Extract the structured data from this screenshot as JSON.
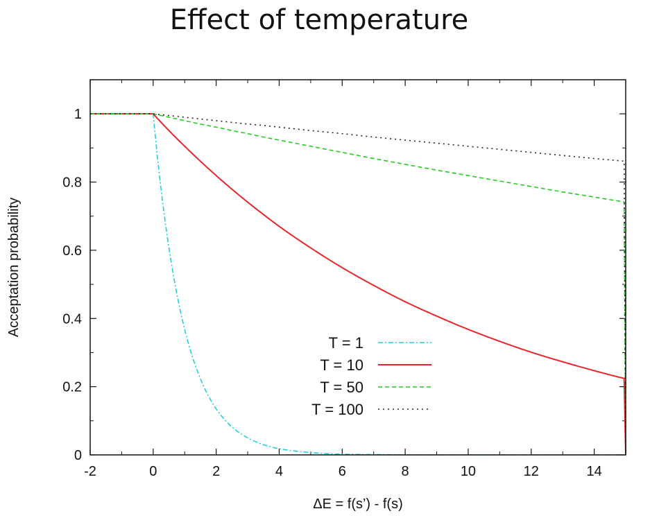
{
  "slide": {
    "title": "Effect of temperature"
  },
  "chart_data": {
    "type": "line",
    "title": "",
    "xlabel": "ΔE = f(s’) - f(s)",
    "ylabel": "Acceptation probability",
    "xlim": [
      -2,
      15
    ],
    "ylim": [
      0,
      1.1
    ],
    "x_ticks": [
      -2,
      0,
      2,
      4,
      6,
      8,
      10,
      12,
      14
    ],
    "y_ticks": [
      0,
      0.2,
      0.4,
      0.6,
      0.8,
      1
    ],
    "y_tick_labels": [
      "0",
      "0.2",
      "0.4",
      "0.6",
      "0.8",
      "1"
    ],
    "grid": false,
    "legend_position": "center",
    "x": [
      -2,
      -1,
      0,
      0.5,
      1,
      1.5,
      2,
      2.5,
      3,
      3.5,
      4,
      5,
      6,
      7,
      8,
      9,
      10,
      11,
      12,
      13,
      14,
      15
    ],
    "series": [
      {
        "name": "T = 1",
        "color": "#1fd0e0",
        "dash": "dashdot",
        "values": [
          1,
          1,
          1,
          0.607,
          0.368,
          0.223,
          0.135,
          0.082,
          0.05,
          0.03,
          0.018,
          0.007,
          0.002,
          0.001,
          0,
          0,
          0,
          0,
          0,
          0,
          0,
          0
        ]
      },
      {
        "name": "T = 10",
        "color": "#e8262a",
        "dash": "solid",
        "values": [
          1,
          1,
          1,
          0.951,
          0.905,
          0.861,
          0.819,
          0.779,
          0.741,
          0.705,
          0.67,
          0.607,
          0.549,
          0.497,
          0.449,
          0.407,
          0.368,
          0.333,
          0.301,
          0.273,
          0.247,
          0.223
        ]
      },
      {
        "name": "T = 50",
        "color": "#22cc22",
        "dash": "dashed",
        "values": [
          1,
          1,
          1,
          0.99,
          0.98,
          0.97,
          0.961,
          0.951,
          0.942,
          0.932,
          0.923,
          0.905,
          0.887,
          0.869,
          0.852,
          0.835,
          0.819,
          0.803,
          0.787,
          0.771,
          0.756,
          0.741
        ]
      },
      {
        "name": "T = 100",
        "color": "#222222",
        "dash": "dotted",
        "values": [
          1,
          1,
          1,
          0.995,
          0.99,
          0.985,
          0.98,
          0.975,
          0.97,
          0.966,
          0.961,
          0.951,
          0.942,
          0.932,
          0.923,
          0.914,
          0.905,
          0.896,
          0.887,
          0.878,
          0.869,
          0.861
        ]
      }
    ]
  }
}
